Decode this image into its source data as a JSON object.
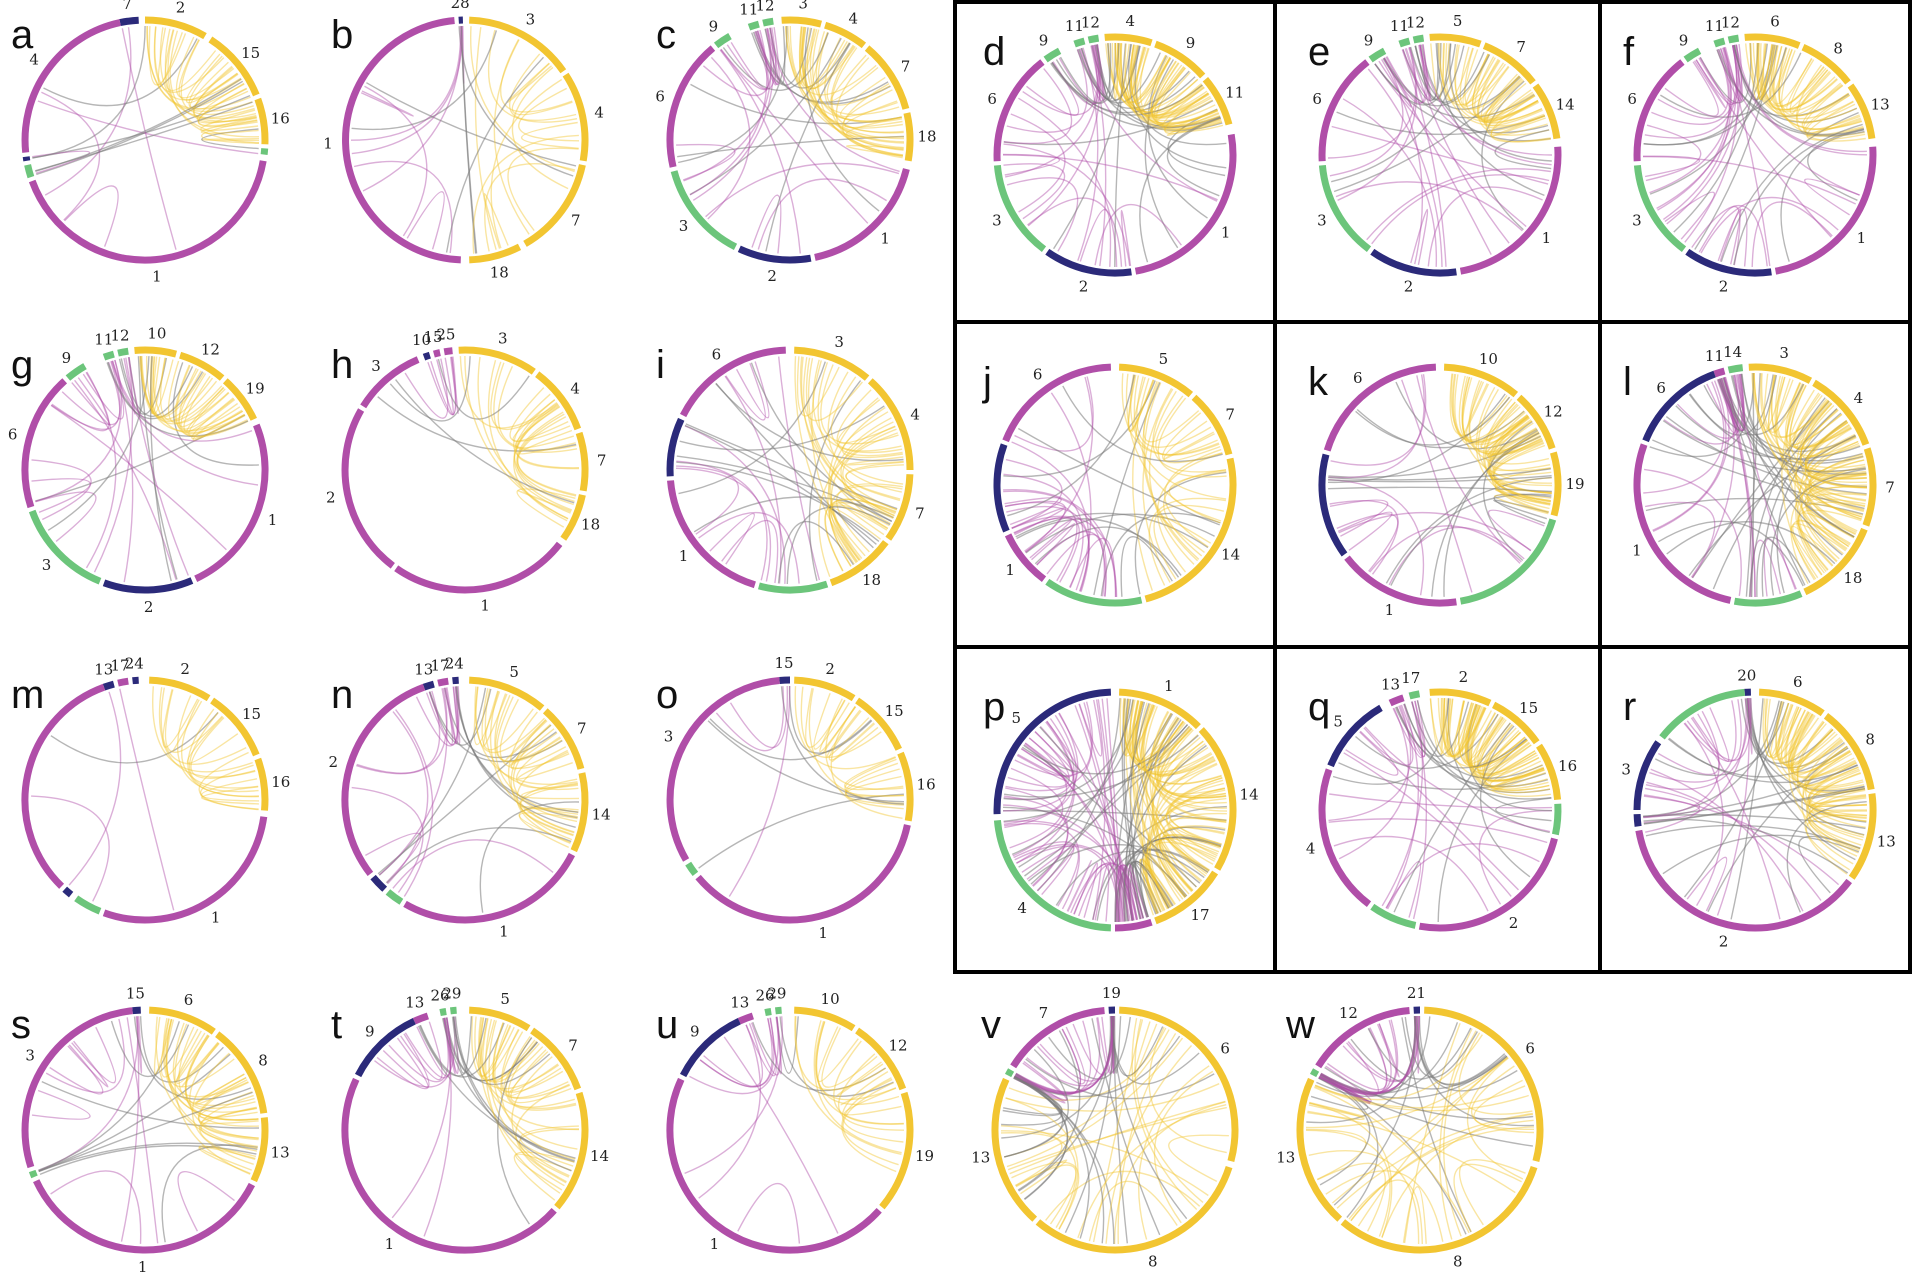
{
  "colors": {
    "magenta": "#b04ea8",
    "yellow": "#f2c531",
    "green": "#6cc57b",
    "navy": "#2b2a7a",
    "gray": "#7a7a7a"
  },
  "panels": [
    {
      "id": "a",
      "segments": [
        {
          "c": "navy",
          "label": "7"
        },
        {
          "c": "yellow",
          "label": "2"
        },
        {
          "c": "yellow",
          "label": "15"
        },
        {
          "c": "yellow",
          "label": "16"
        },
        {
          "c": "green",
          "label": ""
        },
        {
          "c": "magenta",
          "label": "1"
        },
        {
          "c": "green",
          "label": ""
        },
        {
          "c": "navy",
          "label": ""
        },
        {
          "c": "magenta",
          "label": "4"
        }
      ]
    },
    {
      "id": "b",
      "segments": [
        {
          "c": "navy",
          "label": "28"
        },
        {
          "c": "yellow",
          "label": "3"
        },
        {
          "c": "yellow",
          "label": "4"
        },
        {
          "c": "yellow",
          "label": "7"
        },
        {
          "c": "yellow",
          "label": "18"
        },
        {
          "c": "magenta",
          "label": "1"
        }
      ]
    },
    {
      "id": "c",
      "segments": [
        {
          "c": "green",
          "label": "11"
        },
        {
          "c": "green",
          "label": "12"
        },
        {
          "c": "yellow",
          "label": "3"
        },
        {
          "c": "yellow",
          "label": "4"
        },
        {
          "c": "yellow",
          "label": "7"
        },
        {
          "c": "yellow",
          "label": "18"
        },
        {
          "c": "magenta",
          "label": "1"
        },
        {
          "c": "navy",
          "label": "2"
        },
        {
          "c": "green",
          "label": "3"
        },
        {
          "c": "magenta",
          "label": "6"
        },
        {
          "c": "green",
          "label": "9"
        }
      ]
    },
    {
      "id": "d",
      "segments": [
        {
          "c": "green",
          "label": "11"
        },
        {
          "c": "green",
          "label": "12"
        },
        {
          "c": "yellow",
          "label": "4"
        },
        {
          "c": "yellow",
          "label": "9"
        },
        {
          "c": "yellow",
          "label": "11"
        },
        {
          "c": "magenta",
          "label": "1"
        },
        {
          "c": "navy",
          "label": "2"
        },
        {
          "c": "green",
          "label": "3"
        },
        {
          "c": "magenta",
          "label": "6"
        },
        {
          "c": "green",
          "label": "9"
        }
      ]
    },
    {
      "id": "e",
      "segments": [
        {
          "c": "green",
          "label": "11"
        },
        {
          "c": "green",
          "label": "12"
        },
        {
          "c": "yellow",
          "label": "5"
        },
        {
          "c": "yellow",
          "label": "7"
        },
        {
          "c": "yellow",
          "label": "14"
        },
        {
          "c": "magenta",
          "label": "1"
        },
        {
          "c": "navy",
          "label": "2"
        },
        {
          "c": "green",
          "label": "3"
        },
        {
          "c": "magenta",
          "label": "6"
        },
        {
          "c": "green",
          "label": "9"
        }
      ]
    },
    {
      "id": "f",
      "segments": [
        {
          "c": "green",
          "label": "11"
        },
        {
          "c": "green",
          "label": "12"
        },
        {
          "c": "yellow",
          "label": "6"
        },
        {
          "c": "yellow",
          "label": "8"
        },
        {
          "c": "yellow",
          "label": "13"
        },
        {
          "c": "magenta",
          "label": "1"
        },
        {
          "c": "navy",
          "label": "2"
        },
        {
          "c": "green",
          "label": "3"
        },
        {
          "c": "magenta",
          "label": "6"
        },
        {
          "c": "green",
          "label": "9"
        }
      ]
    },
    {
      "id": "g",
      "segments": [
        {
          "c": "green",
          "label": "11"
        },
        {
          "c": "green",
          "label": "12"
        },
        {
          "c": "yellow",
          "label": "10"
        },
        {
          "c": "yellow",
          "label": "12"
        },
        {
          "c": "yellow",
          "label": "19"
        },
        {
          "c": "magenta",
          "label": "1"
        },
        {
          "c": "navy",
          "label": "2"
        },
        {
          "c": "green",
          "label": "3"
        },
        {
          "c": "magenta",
          "label": "6"
        },
        {
          "c": "green",
          "label": "9"
        }
      ]
    },
    {
      "id": "h",
      "segments": [
        {
          "c": "navy",
          "label": "10"
        },
        {
          "c": "magenta",
          "label": "15"
        },
        {
          "c": "magenta",
          "label": "25"
        },
        {
          "c": "yellow",
          "label": "3"
        },
        {
          "c": "yellow",
          "label": "4"
        },
        {
          "c": "yellow",
          "label": "7"
        },
        {
          "c": "yellow",
          "label": "18"
        },
        {
          "c": "magenta",
          "label": "1"
        },
        {
          "c": "magenta",
          "label": "2"
        },
        {
          "c": "magenta",
          "label": "3"
        }
      ]
    },
    {
      "id": "i",
      "segments": [
        {
          "c": "yellow",
          "label": "3"
        },
        {
          "c": "yellow",
          "label": "4"
        },
        {
          "c": "yellow",
          "label": "7"
        },
        {
          "c": "yellow",
          "label": "18"
        },
        {
          "c": "green",
          "label": ""
        },
        {
          "c": "magenta",
          "label": "1"
        },
        {
          "c": "navy",
          "label": ""
        },
        {
          "c": "magenta",
          "label": "6"
        }
      ]
    },
    {
      "id": "j",
      "segments": [
        {
          "c": "yellow",
          "label": "5"
        },
        {
          "c": "yellow",
          "label": "7"
        },
        {
          "c": "yellow",
          "label": "14"
        },
        {
          "c": "green",
          "label": ""
        },
        {
          "c": "magenta",
          "label": "1"
        },
        {
          "c": "navy",
          "label": ""
        },
        {
          "c": "magenta",
          "label": "6"
        }
      ]
    },
    {
      "id": "k",
      "segments": [
        {
          "c": "yellow",
          "label": "10"
        },
        {
          "c": "yellow",
          "label": "12"
        },
        {
          "c": "yellow",
          "label": "19"
        },
        {
          "c": "green",
          "label": ""
        },
        {
          "c": "magenta",
          "label": "1"
        },
        {
          "c": "navy",
          "label": ""
        },
        {
          "c": "magenta",
          "label": "6"
        }
      ]
    },
    {
      "id": "l",
      "segments": [
        {
          "c": "magenta",
          "label": "11"
        },
        {
          "c": "green",
          "label": "14"
        },
        {
          "c": "yellow",
          "label": "3"
        },
        {
          "c": "yellow",
          "label": "4"
        },
        {
          "c": "yellow",
          "label": "7"
        },
        {
          "c": "yellow",
          "label": "18"
        },
        {
          "c": "green",
          "label": ""
        },
        {
          "c": "magenta",
          "label": "1"
        },
        {
          "c": "navy",
          "label": "6"
        }
      ]
    },
    {
      "id": "m",
      "segments": [
        {
          "c": "navy",
          "label": "13"
        },
        {
          "c": "magenta",
          "label": "17"
        },
        {
          "c": "navy",
          "label": "24"
        },
        {
          "c": "yellow",
          "label": "2"
        },
        {
          "c": "yellow",
          "label": "15"
        },
        {
          "c": "yellow",
          "label": "16"
        },
        {
          "c": "magenta",
          "label": "1"
        },
        {
          "c": "green",
          "label": ""
        },
        {
          "c": "navy",
          "label": ""
        },
        {
          "c": "magenta",
          "label": ""
        }
      ]
    },
    {
      "id": "n",
      "segments": [
        {
          "c": "navy",
          "label": "13"
        },
        {
          "c": "magenta",
          "label": "17"
        },
        {
          "c": "navy",
          "label": "24"
        },
        {
          "c": "yellow",
          "label": "5"
        },
        {
          "c": "yellow",
          "label": "7"
        },
        {
          "c": "yellow",
          "label": "14"
        },
        {
          "c": "magenta",
          "label": "1"
        },
        {
          "c": "green",
          "label": ""
        },
        {
          "c": "navy",
          "label": ""
        },
        {
          "c": "magenta",
          "label": "2"
        }
      ]
    },
    {
      "id": "o",
      "segments": [
        {
          "c": "navy",
          "label": "15"
        },
        {
          "c": "yellow",
          "label": "2"
        },
        {
          "c": "yellow",
          "label": "15"
        },
        {
          "c": "yellow",
          "label": "16"
        },
        {
          "c": "magenta",
          "label": "1"
        },
        {
          "c": "green",
          "label": ""
        },
        {
          "c": "magenta",
          "label": "3"
        }
      ]
    },
    {
      "id": "p",
      "segments": [
        {
          "c": "yellow",
          "label": "1"
        },
        {
          "c": "yellow",
          "label": "14"
        },
        {
          "c": "yellow",
          "label": "17"
        },
        {
          "c": "magenta",
          "label": ""
        },
        {
          "c": "green",
          "label": "4"
        },
        {
          "c": "navy",
          "label": "5"
        }
      ]
    },
    {
      "id": "q",
      "segments": [
        {
          "c": "magenta",
          "label": "13"
        },
        {
          "c": "green",
          "label": "17"
        },
        {
          "c": "yellow",
          "label": "2"
        },
        {
          "c": "yellow",
          "label": "15"
        },
        {
          "c": "yellow",
          "label": "16"
        },
        {
          "c": "green",
          "label": ""
        },
        {
          "c": "magenta",
          "label": "2"
        },
        {
          "c": "green",
          "label": ""
        },
        {
          "c": "magenta",
          "label": "4"
        },
        {
          "c": "navy",
          "label": "5"
        }
      ]
    },
    {
      "id": "r",
      "segments": [
        {
          "c": "navy",
          "label": "20"
        },
        {
          "c": "yellow",
          "label": "6"
        },
        {
          "c": "yellow",
          "label": "8"
        },
        {
          "c": "yellow",
          "label": "13"
        },
        {
          "c": "magenta",
          "label": "2"
        },
        {
          "c": "navy",
          "label": ""
        },
        {
          "c": "navy",
          "label": "3"
        },
        {
          "c": "green",
          "label": ""
        }
      ]
    },
    {
      "id": "s",
      "segments": [
        {
          "c": "navy",
          "label": "15"
        },
        {
          "c": "yellow",
          "label": "6"
        },
        {
          "c": "yellow",
          "label": "8"
        },
        {
          "c": "yellow",
          "label": "13"
        },
        {
          "c": "magenta",
          "label": "1"
        },
        {
          "c": "green",
          "label": ""
        },
        {
          "c": "magenta",
          "label": "3"
        }
      ]
    },
    {
      "id": "t",
      "segments": [
        {
          "c": "magenta",
          "label": "13"
        },
        {
          "c": "green",
          "label": "26"
        },
        {
          "c": "green",
          "label": "29"
        },
        {
          "c": "yellow",
          "label": "5"
        },
        {
          "c": "yellow",
          "label": "7"
        },
        {
          "c": "yellow",
          "label": "14"
        },
        {
          "c": "magenta",
          "label": "1"
        },
        {
          "c": "navy",
          "label": "9"
        }
      ]
    },
    {
      "id": "u",
      "segments": [
        {
          "c": "magenta",
          "label": "13"
        },
        {
          "c": "green",
          "label": "26"
        },
        {
          "c": "green",
          "label": "29"
        },
        {
          "c": "yellow",
          "label": "10"
        },
        {
          "c": "yellow",
          "label": "12"
        },
        {
          "c": "yellow",
          "label": "19"
        },
        {
          "c": "magenta",
          "label": "1"
        },
        {
          "c": "navy",
          "label": "9"
        }
      ]
    },
    {
      "id": "v",
      "segments": [
        {
          "c": "navy",
          "label": "19"
        },
        {
          "c": "yellow",
          "label": "6"
        },
        {
          "c": "yellow",
          "label": "8"
        },
        {
          "c": "yellow",
          "label": "13"
        },
        {
          "c": "green",
          "label": ""
        },
        {
          "c": "magenta",
          "label": "7"
        }
      ]
    },
    {
      "id": "w",
      "segments": [
        {
          "c": "navy",
          "label": "21"
        },
        {
          "c": "yellow",
          "label": "6"
        },
        {
          "c": "yellow",
          "label": "8"
        },
        {
          "c": "yellow",
          "label": "13"
        },
        {
          "c": "green",
          "label": ""
        },
        {
          "c": "magenta",
          "label": "12"
        }
      ]
    }
  ]
}
